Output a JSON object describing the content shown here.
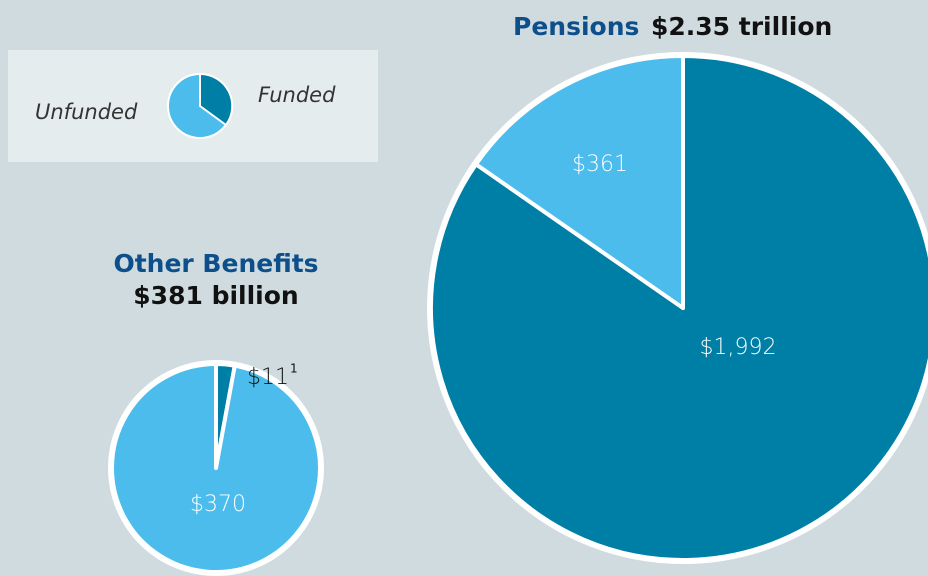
{
  "chart_data": [
    {
      "type": "pie",
      "title": "Pensions",
      "subtitle": "$2.35 trillion",
      "categories": [
        "Funded",
        "Unfunded"
      ],
      "values": [
        1992,
        361
      ],
      "value_labels": [
        "$1,992",
        "$361"
      ],
      "colors": [
        "#007fa6",
        "#4bbcec"
      ]
    },
    {
      "type": "pie",
      "title": "Other Benefits",
      "subtitle": "$381 billion",
      "categories": [
        "Funded",
        "Unfunded"
      ],
      "values": [
        11,
        370
      ],
      "value_labels": [
        "$11",
        "$370"
      ],
      "footnote": "1",
      "colors": [
        "#007fa6",
        "#4bbcec"
      ]
    }
  ]
}
